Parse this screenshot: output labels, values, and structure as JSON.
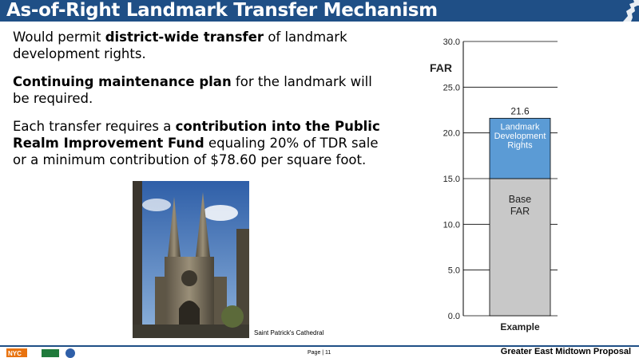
{
  "slide": {
    "title": "As-of-Right Landmark Transfer Mechanism",
    "bullets": [
      {
        "parts": [
          {
            "t": "Would permit "
          },
          {
            "t": "district-wide transfer",
            "b": true
          },
          {
            "t": " of landmark development rights."
          }
        ]
      },
      {
        "parts": [
          {
            "t": "Continuing maintenance plan",
            "b": true
          },
          {
            "t": " for the landmark will be required."
          }
        ]
      },
      {
        "parts": [
          {
            "t": "Each transfer requires a "
          },
          {
            "t": "contribution into the Public Realm Improvement Fund",
            "b": true
          },
          {
            "t": " equaling 20% of TDR sale or a minimum contribution of $78.60 per square foot."
          }
        ]
      }
    ],
    "photo_caption": "Saint Patrick's Cathedral",
    "footer": {
      "page": "Page | 11",
      "proposal": "Greater East Midtown Proposal"
    }
  },
  "chart_data": {
    "type": "bar",
    "stacked": true,
    "ylabel": "FAR",
    "categories": [
      "Example"
    ],
    "ylim": [
      0,
      30
    ],
    "yticks": [
      "0.0",
      "5.0",
      "10.0",
      "15.0",
      "20.0",
      "25.0",
      "30.0"
    ],
    "total_label": "21.6",
    "series": [
      {
        "label_lines": [
          "Base",
          "FAR"
        ],
        "values": [
          15.0
        ],
        "color": "#c8c8c8"
      },
      {
        "label_lines": [
          "Landmark",
          "Development",
          "Rights"
        ],
        "values": [
          6.6
        ],
        "color": "#5b9bd5"
      }
    ],
    "grid": true
  }
}
